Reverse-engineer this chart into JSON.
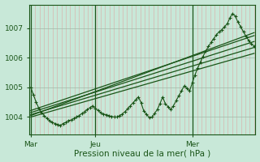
{
  "bg_color": "#c8e8d8",
  "plot_bg_color": "#c8e8d8",
  "grid_color_v": "#e09898",
  "grid_color_h": "#a0b8a8",
  "line_color": "#1a5518",
  "marker_color": "#1a5518",
  "xlabel": "Pression niveau de la mer( hPa )",
  "ylim": [
    1003.4,
    1007.8
  ],
  "yticks": [
    1004,
    1005,
    1006,
    1007
  ],
  "xtick_labels": [
    "Mar",
    "Jeu",
    "Mer"
  ],
  "xtick_positions": [
    0,
    24,
    60
  ],
  "xlabel_fontsize": 7.5,
  "tick_fontsize": 6.5,
  "n_points": 84,
  "main_series": [
    1005.0,
    1004.75,
    1004.5,
    1004.3,
    1004.15,
    1004.05,
    1003.95,
    1003.88,
    1003.82,
    1003.78,
    1003.75,
    1003.72,
    1003.78,
    1003.82,
    1003.88,
    1003.9,
    1003.95,
    1004.0,
    1004.05,
    1004.12,
    1004.18,
    1004.25,
    1004.32,
    1004.38,
    1004.3,
    1004.22,
    1004.15,
    1004.1,
    1004.08,
    1004.05,
    1004.02,
    1004.0,
    1004.0,
    1004.05,
    1004.1,
    1004.18,
    1004.28,
    1004.38,
    1004.48,
    1004.58,
    1004.68,
    1004.48,
    1004.2,
    1004.1,
    1003.98,
    1004.0,
    1004.12,
    1004.25,
    1004.45,
    1004.68,
    1004.45,
    1004.35,
    1004.25,
    1004.38,
    1004.55,
    1004.72,
    1004.88,
    1005.05,
    1004.98,
    1004.88,
    1005.15,
    1005.42,
    1005.65,
    1005.85,
    1006.05,
    1006.22,
    1006.38,
    1006.52,
    1006.65,
    1006.78,
    1006.88,
    1006.95,
    1007.05,
    1007.15,
    1007.35,
    1007.5,
    1007.4,
    1007.2,
    1007.05,
    1006.88,
    1006.72,
    1006.58,
    1006.48,
    1006.38
  ],
  "trend_lines": [
    [
      1004.15,
      1006.55
    ],
    [
      1004.08,
      1006.35
    ],
    [
      1004.0,
      1006.15
    ],
    [
      1004.22,
      1006.75
    ],
    [
      1004.05,
      1006.85
    ]
  ]
}
